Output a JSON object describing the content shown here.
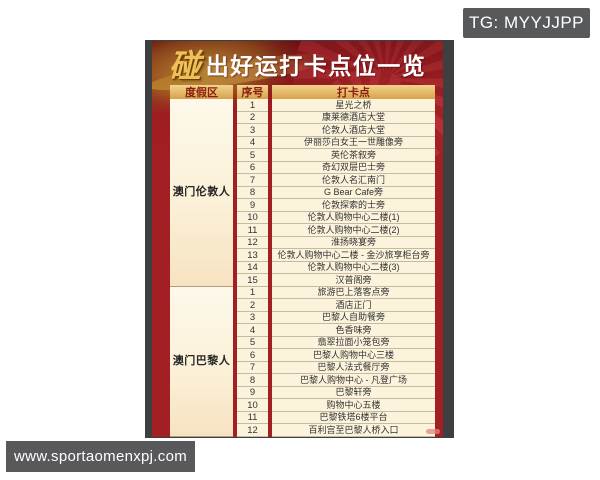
{
  "badges": {
    "telegram": "TG: MYYJJPP",
    "website": "www.sportaomenxpj.com"
  },
  "card": {
    "title_char": "碰",
    "title_rest": "出好运打卡点位一览",
    "table": {
      "headers": [
        "度假区",
        "序号",
        "打卡点"
      ],
      "sections": [
        {
          "resort": "澳门伦敦人",
          "points": [
            "星光之桥",
            "康莱德酒店大堂",
            "伦敦人酒店大堂",
            "伊丽莎白女王一世雕像旁",
            "英伦茶叙旁",
            "奇幻双层巴士旁",
            "伦敦人名汇南门",
            "G Bear Cafe旁",
            "伦敦探索的士旁",
            "伦敦人购物中心二楼(1)",
            "伦敦人购物中心二楼(2)",
            "淮扬晓宴旁",
            "伦敦人购物中心二楼 - 金沙旅享柜台旁",
            "伦敦人购物中心二楼(3)",
            "汉普阁旁"
          ]
        },
        {
          "resort": "澳门巴黎人",
          "points": [
            "旅游巴上落客点旁",
            "酒店正门",
            "巴黎人自助餐旁",
            "色香味旁",
            "翡翠拉面小笼包旁",
            "巴黎人购物中心三楼",
            "巴黎人法式餐厅旁",
            "巴黎人购物中心 - 凡登广场",
            "巴黎轩旁",
            "购物中心五楼",
            "巴黎铁塔6楼平台",
            "百利宫至巴黎人桥入口"
          ]
        }
      ]
    }
  },
  "colors": {
    "card_red": "#a22024",
    "card_red_dark": "#87141a",
    "header_gold_light": "#f2d38d",
    "header_gold_dark": "#d6a24b",
    "header_text": "#8a1d10",
    "cell_cream": "#fbf3dc",
    "badge_gray": "#58595b",
    "title_gold": "#eec057"
  }
}
